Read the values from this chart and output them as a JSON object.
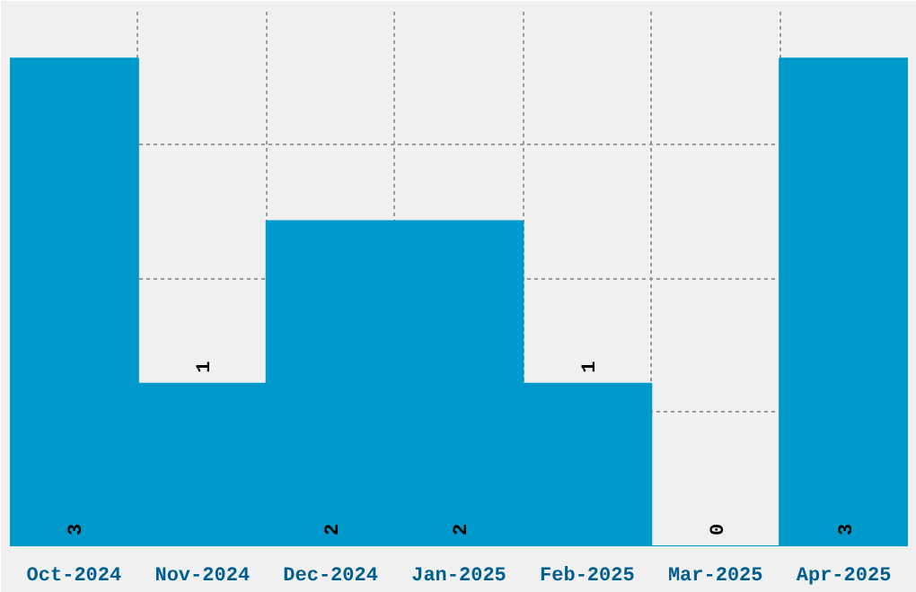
{
  "chart_data": {
    "type": "bar",
    "categories": [
      "Oct-2024",
      "Nov-2024",
      "Dec-2024",
      "Jan-2025",
      "Feb-2025",
      "Mar-2025",
      "Apr-2025"
    ],
    "values": [
      3,
      1,
      2,
      2,
      1,
      0,
      3
    ],
    "color": "#0099cc",
    "data_labels": true,
    "grid": true
  }
}
